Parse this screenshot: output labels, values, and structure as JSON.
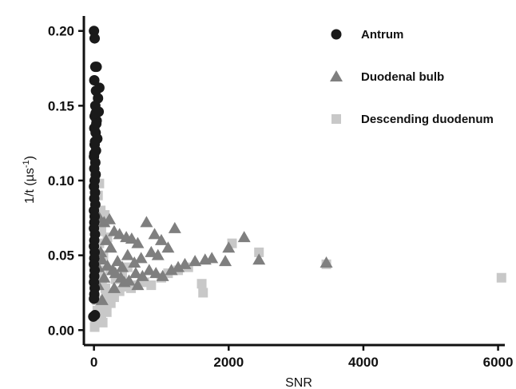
{
  "chart_data": {
    "type": "scatter",
    "xlabel": "SNR",
    "ylabel": "1/t  (µs",
    "ylabel_superscript": "-1",
    "ylabel_close": ")",
    "xlim": [
      -150,
      6100
    ],
    "ylim": [
      -0.01,
      0.21
    ],
    "x_ticks": [
      0,
      2000,
      4000,
      6000
    ],
    "x_tick_labels": [
      "0",
      "2000",
      "4000",
      "6000"
    ],
    "y_ticks": [
      0.0,
      0.05,
      0.1,
      0.15,
      0.2
    ],
    "y_tick_labels": [
      "0.00",
      "0.05",
      "0.10",
      "0.15",
      "0.20"
    ],
    "grid": false,
    "legend_position": "top-right",
    "series": [
      {
        "name": "Antrum",
        "marker": "circle",
        "color": "#1a1a1a",
        "points": [
          [
            0,
            0.2
          ],
          [
            10,
            0.195
          ],
          [
            20,
            0.176
          ],
          [
            40,
            0.176
          ],
          [
            80,
            0.162
          ],
          [
            5,
            0.167
          ],
          [
            30,
            0.16
          ],
          [
            60,
            0.155
          ],
          [
            20,
            0.15
          ],
          [
            70,
            0.146
          ],
          [
            10,
            0.143
          ],
          [
            40,
            0.14
          ],
          [
            5,
            0.135
          ],
          [
            25,
            0.132
          ],
          [
            50,
            0.128
          ],
          [
            10,
            0.124
          ],
          [
            30,
            0.12
          ],
          [
            0,
            0.116
          ],
          [
            20,
            0.112
          ],
          [
            5,
            0.108
          ],
          [
            25,
            0.104
          ],
          [
            10,
            0.1
          ],
          [
            0,
            0.096
          ],
          [
            15,
            0.092
          ],
          [
            5,
            0.088
          ],
          [
            20,
            0.084
          ],
          [
            0,
            0.08
          ],
          [
            10,
            0.076
          ],
          [
            5,
            0.072
          ],
          [
            0,
            0.068
          ],
          [
            15,
            0.064
          ],
          [
            5,
            0.06
          ],
          [
            0,
            0.056
          ],
          [
            10,
            0.052
          ],
          [
            5,
            0.048
          ],
          [
            0,
            0.044
          ],
          [
            10,
            0.04
          ],
          [
            5,
            0.036
          ],
          [
            0,
            0.032
          ],
          [
            10,
            0.028
          ],
          [
            5,
            0.024
          ],
          [
            0,
            0.021
          ],
          [
            -10,
            0.009
          ],
          [
            15,
            0.01
          ],
          [
            25,
            0.145
          ],
          [
            35,
            0.138
          ],
          [
            15,
            0.126
          ],
          [
            5,
            0.118
          ]
        ]
      },
      {
        "name": "Duodenal bulb",
        "marker": "triangle",
        "color": "#7f7f7f",
        "points": [
          [
            80,
            0.075
          ],
          [
            150,
            0.072
          ],
          [
            230,
            0.074
          ],
          [
            300,
            0.066
          ],
          [
            380,
            0.064
          ],
          [
            480,
            0.062
          ],
          [
            560,
            0.061
          ],
          [
            650,
            0.058
          ],
          [
            780,
            0.072
          ],
          [
            900,
            0.064
          ],
          [
            1000,
            0.06
          ],
          [
            1200,
            0.068
          ],
          [
            1100,
            0.055
          ],
          [
            950,
            0.05
          ],
          [
            850,
            0.052
          ],
          [
            700,
            0.048
          ],
          [
            600,
            0.045
          ],
          [
            500,
            0.05
          ],
          [
            420,
            0.042
          ],
          [
            350,
            0.046
          ],
          [
            280,
            0.04
          ],
          [
            200,
            0.043
          ],
          [
            120,
            0.047
          ],
          [
            60,
            0.042
          ],
          [
            100,
            0.052
          ],
          [
            180,
            0.06
          ],
          [
            250,
            0.055
          ],
          [
            320,
            0.038
          ],
          [
            400,
            0.035
          ],
          [
            520,
            0.033
          ],
          [
            620,
            0.038
          ],
          [
            720,
            0.036
          ],
          [
            820,
            0.04
          ],
          [
            920,
            0.038
          ],
          [
            1020,
            0.036
          ],
          [
            1150,
            0.04
          ],
          [
            1250,
            0.042
          ],
          [
            1350,
            0.044
          ],
          [
            1500,
            0.046
          ],
          [
            1650,
            0.047
          ],
          [
            1750,
            0.048
          ],
          [
            1950,
            0.046
          ],
          [
            2000,
            0.055
          ],
          [
            2230,
            0.062
          ],
          [
            2450,
            0.047
          ],
          [
            3450,
            0.045
          ],
          [
            650,
            0.03
          ],
          [
            450,
            0.032
          ],
          [
            300,
            0.028
          ],
          [
            150,
            0.035
          ],
          [
            60,
            0.03
          ],
          [
            120,
            0.02
          ]
        ]
      },
      {
        "name": "Descending duodenum",
        "marker": "square",
        "color": "#c8c8c8",
        "points": [
          [
            20,
            0.1
          ],
          [
            80,
            0.098
          ],
          [
            60,
            0.09
          ],
          [
            100,
            0.08
          ],
          [
            160,
            0.077
          ],
          [
            130,
            0.074
          ],
          [
            50,
            0.07
          ],
          [
            110,
            0.066
          ],
          [
            200,
            0.062
          ],
          [
            80,
            0.058
          ],
          [
            140,
            0.05
          ],
          [
            30,
            0.045
          ],
          [
            90,
            0.04
          ],
          [
            60,
            0.035
          ],
          [
            120,
            0.03
          ],
          [
            170,
            0.028
          ],
          [
            220,
            0.025
          ],
          [
            40,
            0.02
          ],
          [
            90,
            0.018
          ],
          [
            140,
            0.016
          ],
          [
            190,
            0.012
          ],
          [
            20,
            0.008
          ],
          [
            70,
            0.006
          ],
          [
            110,
            0.01
          ],
          [
            10,
            0.002
          ],
          [
            300,
            0.022
          ],
          [
            380,
            0.026
          ],
          [
            460,
            0.029
          ],
          [
            550,
            0.028
          ],
          [
            650,
            0.03
          ],
          [
            750,
            0.032
          ],
          [
            850,
            0.03
          ],
          [
            1000,
            0.035
          ],
          [
            1100,
            0.038
          ],
          [
            1250,
            0.04
          ],
          [
            1400,
            0.042
          ],
          [
            1600,
            0.031
          ],
          [
            1620,
            0.025
          ],
          [
            2050,
            0.058
          ],
          [
            2450,
            0.052
          ],
          [
            3450,
            0.044
          ],
          [
            6050,
            0.035
          ],
          [
            250,
            0.018
          ],
          [
            180,
            0.022
          ],
          [
            320,
            0.034
          ],
          [
            420,
            0.036
          ],
          [
            50,
            0.013
          ],
          [
            130,
            0.005
          ],
          [
            240,
            0.04
          ],
          [
            500,
            0.042
          ]
        ]
      }
    ]
  }
}
